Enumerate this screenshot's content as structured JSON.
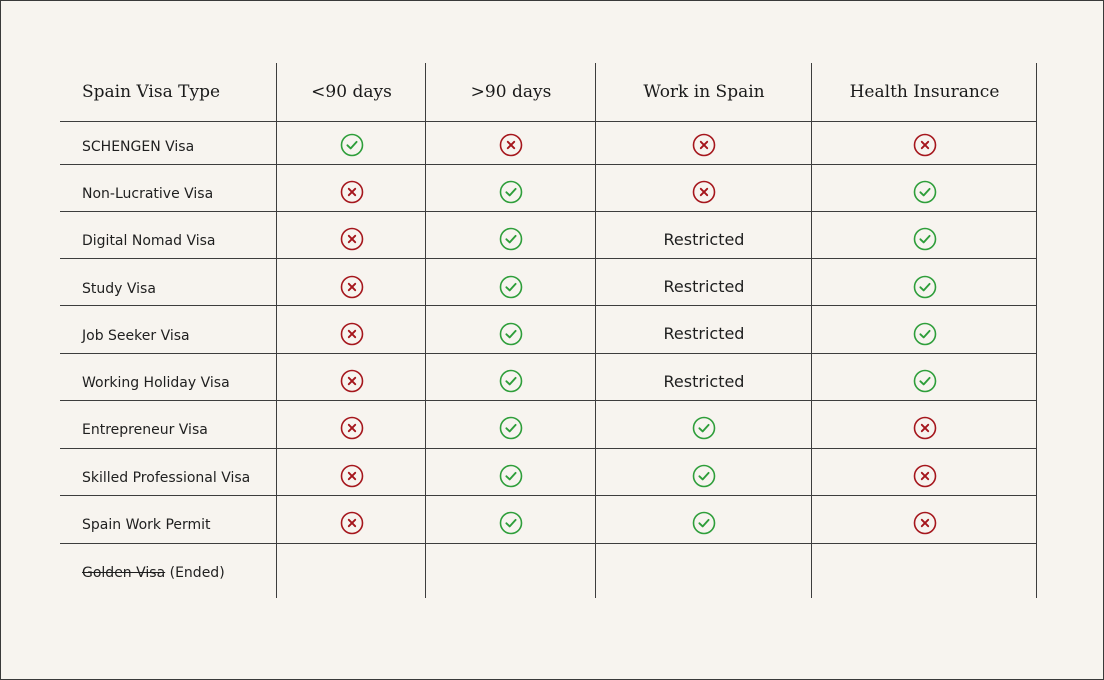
{
  "colors": {
    "background": "#f7f4ef",
    "check": "#2e9e3a",
    "cross": "#a5161c",
    "rule": "#3d3d3d"
  },
  "icons": {
    "yes": "check-circle-icon",
    "no": "x-circle-icon"
  },
  "headers": [
    "Spain Visa Type",
    "<90 days",
    ">90 days",
    "Work in Spain",
    "Health Insurance"
  ],
  "rows": [
    {
      "label": "SCHENGEN Visa",
      "values": [
        "yes",
        "no",
        "no",
        "no"
      ]
    },
    {
      "label": "Non-Lucrative Visa",
      "values": [
        "no",
        "yes",
        "no",
        "yes"
      ]
    },
    {
      "label": "Digital Nomad Visa",
      "values": [
        "no",
        "yes",
        "Restricted",
        "yes"
      ]
    },
    {
      "label": "Study Visa",
      "values": [
        "no",
        "yes",
        "Restricted",
        "yes"
      ]
    },
    {
      "label": "Job Seeker Visa",
      "values": [
        "no",
        "yes",
        "Restricted",
        "yes"
      ]
    },
    {
      "label": "Working Holiday Visa",
      "values": [
        "no",
        "yes",
        "Restricted",
        "yes"
      ]
    },
    {
      "label": "Entrepreneur Visa",
      "values": [
        "no",
        "yes",
        "yes",
        "no"
      ]
    },
    {
      "label": "Skilled Professional Visa",
      "values": [
        "no",
        "yes",
        "yes",
        "no"
      ]
    },
    {
      "label": "Spain Work Permit",
      "values": [
        "no",
        "yes",
        "yes",
        "no"
      ]
    }
  ],
  "footer_row": {
    "struck": "Golden Visa",
    "note": "(Ended)"
  }
}
